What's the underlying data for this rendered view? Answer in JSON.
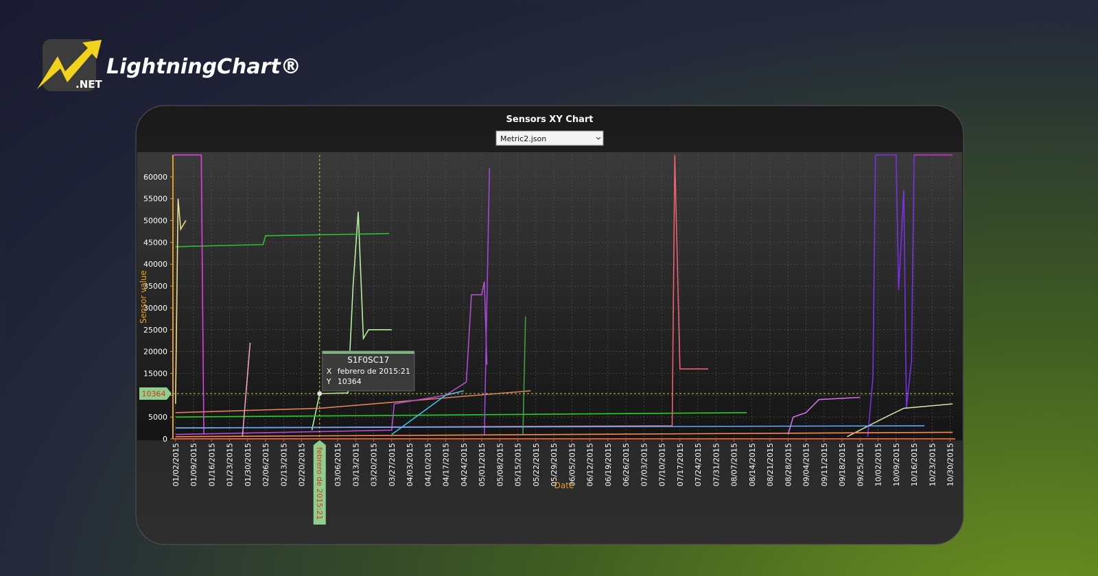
{
  "brand": {
    "name": "LightningChart®",
    "suffix": ".NET"
  },
  "dropdown": {
    "selected": "Metric2.json"
  },
  "chart_data": {
    "type": "line",
    "title": "Sensors XY Chart",
    "x_label": "Date",
    "y_label": "Sensor value",
    "xlim": [
      "01/01/2015",
      "11/01/2015"
    ],
    "ylim": [
      0,
      65000
    ],
    "yticks": [
      0,
      5000,
      10000,
      15000,
      20000,
      25000,
      30000,
      35000,
      40000,
      45000,
      50000,
      55000,
      60000
    ],
    "xticks": [
      "01/02/2015",
      "01/09/2015",
      "01/16/2015",
      "01/23/2015",
      "01/30/2015",
      "02/06/2015",
      "02/13/2015",
      "02/20/2015",
      "03/06/2015",
      "03/13/2015",
      "03/20/2015",
      "03/27/2015",
      "04/03/2015",
      "04/10/2015",
      "04/17/2015",
      "04/24/2015",
      "05/01/2015",
      "05/08/2015",
      "05/15/2015",
      "05/22/2015",
      "05/29/2015",
      "06/05/2015",
      "06/12/2015",
      "06/19/2015",
      "06/26/2015",
      "07/03/2015",
      "07/10/2015",
      "07/17/2015",
      "07/24/2015",
      "07/31/2015",
      "08/07/2015",
      "08/14/2015",
      "08/21/2015",
      "08/28/2015",
      "09/04/2015",
      "09/11/2015",
      "09/18/2015",
      "09/25/2015",
      "10/02/2015",
      "10/09/2015",
      "10/16/2015",
      "10/23/2015",
      "10/30/2015"
    ],
    "grid": true,
    "series": [
      {
        "color": "#b8f0a0",
        "x": [
          "02/24/2015",
          "02/27/2015",
          "03/10/2015",
          "03/12/2015",
          "03/14/2015",
          "03/16/2015",
          "03/18/2015",
          "03/27/2015"
        ],
        "values": [
          2000,
          10364,
          10500,
          35000,
          52000,
          23000,
          25000,
          25000
        ]
      },
      {
        "color": "#30c030",
        "x": [
          "01/02/2015",
          "02/05/2015",
          "02/06/2015",
          "03/26/2015"
        ],
        "values": [
          44000,
          44500,
          46500,
          47000
        ]
      },
      {
        "color": "#28d028",
        "x": [
          "01/02/2015",
          "08/12/2015"
        ],
        "values": [
          5000,
          6000
        ]
      },
      {
        "color": "#e08060",
        "x": [
          "01/02/2015",
          "02/27/2015",
          "05/20/2015"
        ],
        "values": [
          6000,
          7000,
          11000
        ]
      },
      {
        "color": "#b050d0",
        "x": [
          "01/02/2015",
          "03/27/2015",
          "03/28/2015",
          "04/17/2015",
          "04/25/2015",
          "04/27/2015",
          "05/01/2015",
          "05/02/2015",
          "05/03/2015"
        ],
        "values": [
          1000,
          2000,
          8000,
          10000,
          13000,
          33000,
          33000,
          36000,
          17000
        ]
      },
      {
        "color": "#a048e0",
        "x": [
          "05/02/2015",
          "05/04/2015"
        ],
        "values": [
          1000,
          62000
        ]
      },
      {
        "color": "#f06070",
        "x": [
          "01/02/2015",
          "07/14/2015",
          "07/15/2015",
          "07/17/2015",
          "07/28/2015"
        ],
        "values": [
          2500,
          3000,
          65000,
          16000,
          16000
        ]
      },
      {
        "color": "#7a30e8",
        "x": [
          "09/28/2015",
          "09/30/2015",
          "10/01/2015",
          "10/09/2015",
          "10/10/2015",
          "10/12/2015",
          "10/13/2015",
          "10/15/2015",
          "10/16/2015"
        ],
        "values": [
          500,
          14000,
          65000,
          65000,
          34000,
          57000,
          7000,
          18000,
          65000
        ]
      },
      {
        "color": "#e040e0",
        "x": [
          "01/01/2015",
          "01/12/2015",
          "01/13/2015"
        ],
        "values": [
          65000,
          65000,
          1000
        ]
      },
      {
        "color": "#d030d0",
        "x": [
          "10/16/2015",
          "10/31/2015"
        ],
        "values": [
          65000,
          65000
        ]
      },
      {
        "color": "#40c0e0",
        "x": [
          "03/27/2015",
          "04/10/2015",
          "04/17/2015",
          "04/24/2015"
        ],
        "values": [
          1000,
          7000,
          10000,
          11000
        ]
      },
      {
        "color": "#e8e090",
        "x": [
          "01/02/2015",
          "01/03/2015",
          "01/04/2015",
          "01/06/2015"
        ],
        "values": [
          8000,
          55000,
          48000,
          50000
        ]
      },
      {
        "color": "#d070f0",
        "x": [
          "08/28/2015",
          "08/30/2015",
          "09/04/2015",
          "09/09/2015",
          "09/25/2015"
        ],
        "values": [
          1000,
          5000,
          6000,
          9000,
          9500
        ]
      },
      {
        "color": "#d0e0a0",
        "x": [
          "09/20/2015",
          "10/05/2015",
          "10/12/2015",
          "10/31/2015"
        ],
        "values": [
          500,
          5000,
          7000,
          8000
        ]
      },
      {
        "color": "#40a040",
        "x": [
          "05/17/2015",
          "05/18/2015"
        ],
        "values": [
          1000,
          28000
        ]
      },
      {
        "color": "#ff8a50",
        "x": [
          "01/02/2015",
          "10/31/2015"
        ],
        "values": [
          500,
          1500
        ]
      },
      {
        "color": "#f0a0c0",
        "x": [
          "01/28/2015",
          "01/31/2015"
        ],
        "values": [
          500,
          22000
        ]
      },
      {
        "color": "#60b0ff",
        "x": [
          "01/02/2015",
          "10/20/2015"
        ],
        "values": [
          2500,
          3000
        ]
      }
    ],
    "tooltip": {
      "title": "S1F0SC17",
      "x_label": "X",
      "x_value": "febrero de 2015:21",
      "y_label": "Y",
      "y_value": 10364
    }
  }
}
